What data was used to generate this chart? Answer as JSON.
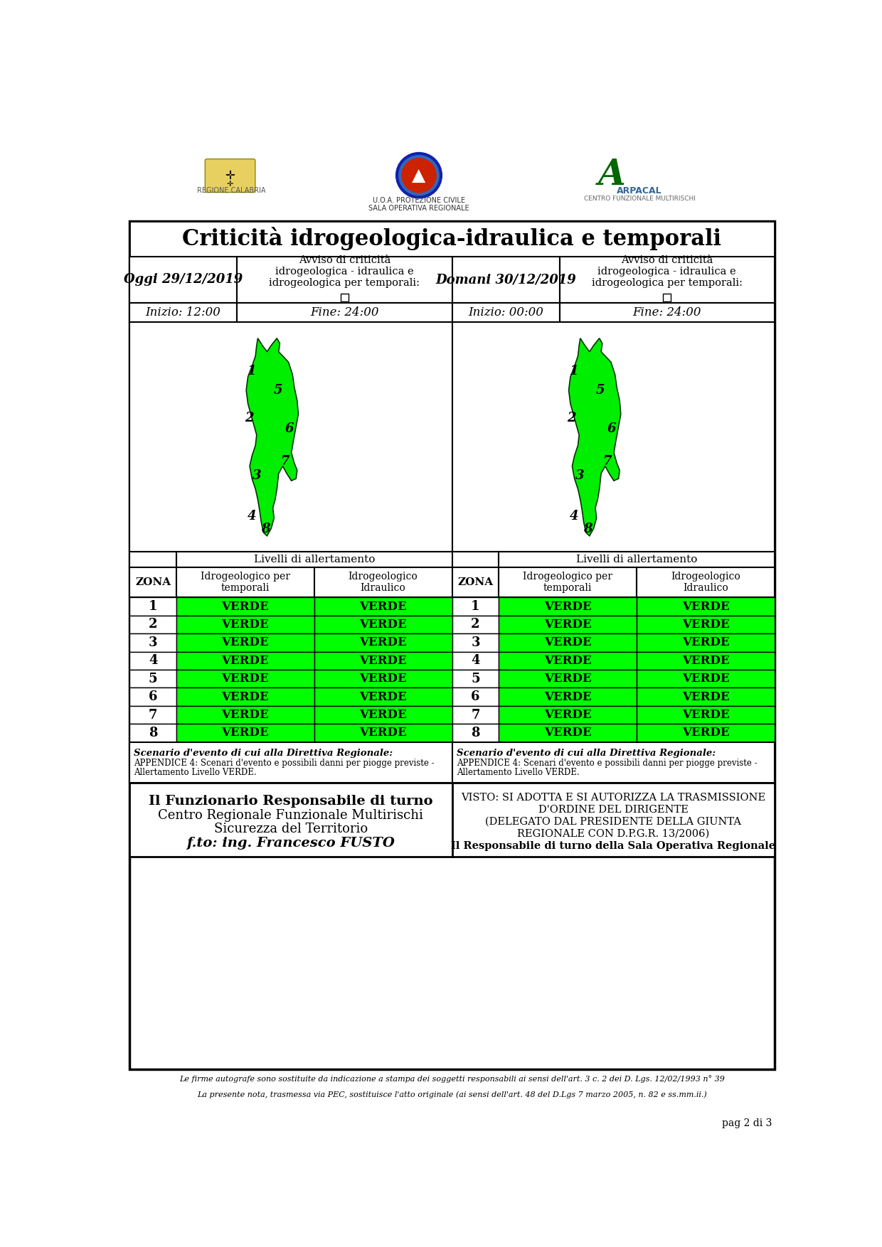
{
  "title": "Criticità idrogeologica-idraulica e temporali",
  "page_bg": "#ffffff",
  "today_label": "Oggi 29/12/2019",
  "tomorrow_label": "Domani 30/12/2019",
  "today_start": "Inizio: 12:00",
  "today_end": "Fine: 24:00",
  "tomorrow_start": "Inizio: 00:00",
  "tomorrow_end": "Fine: 24:00",
  "avviso_label": "Avviso di criticità\nidrogeologica - idraulica e\nidrogeologica per temporali:",
  "livelli_label": "Livelli di allertamento",
  "zona_label": "ZONA",
  "col1_label": "Idrogeologico per\ntemporali",
  "col2_label": "Idrogeologico\nIdraulico",
  "zones": [
    1,
    2,
    3,
    4,
    5,
    6,
    7,
    8
  ],
  "verde": "VERDE",
  "verde_color": "#00ff00",
  "scenario_title": "Scenario d'evento di cui alla Direttiva Regionale:",
  "scenario_text1": "APPENDICE 4: Scenari d'evento e possibili danni per piogge previste -",
  "scenario_text2": "Allertamento Livello VERDE.",
  "funzionario_title": "Il Funzionario Responsabile di turno",
  "funzionario_line1": "Centro Regionale Funzionale Multirischi",
  "funzionario_line2": "Sicurezza del Territorio",
  "funzionario_line3": "f.to: ing. Francesco FUSTO",
  "visto_line1": "VISTO: SI ADOTTA E SI AUTORIZZA LA TRASMISSIONE",
  "visto_line2": "D'ORDINE DEL DIRIGENTE",
  "visto_line3": "(DELEGATO DAL PRESIDENTE DELLA GIUNTA",
  "visto_line4": "REGIONALE CON D.P.G.R. 13/2006)",
  "visto_line5": "Il Responsabile di turno della Sala Operativa Regionale",
  "footer_line1": "Le firme autografe sono sostituite da indicazione a stampa dei soggetti responsabili ai sensi dell'art. 3 c. 2 dei D. Lgs. 12/02/1993 n° 39",
  "footer_line2": "La presente nota, trasmessa via PEC, sostituisce l'atto originale (ai sensi dell'art. 48 del D.Lgs 7 marzo 2005, n. 82 e ss.mm.ii.)",
  "page_num": "pag 2 di 3",
  "regione_label": "REGIONE CALABRIA",
  "prot_label": "U.O.A. PROTEZIONE CIVILE\nSALA OPERATIVA REGIONALE",
  "arpacal_label": "ARPACAL",
  "arpacal_sub": "CENTRO FUNZIONALE MULTIRISCHI"
}
